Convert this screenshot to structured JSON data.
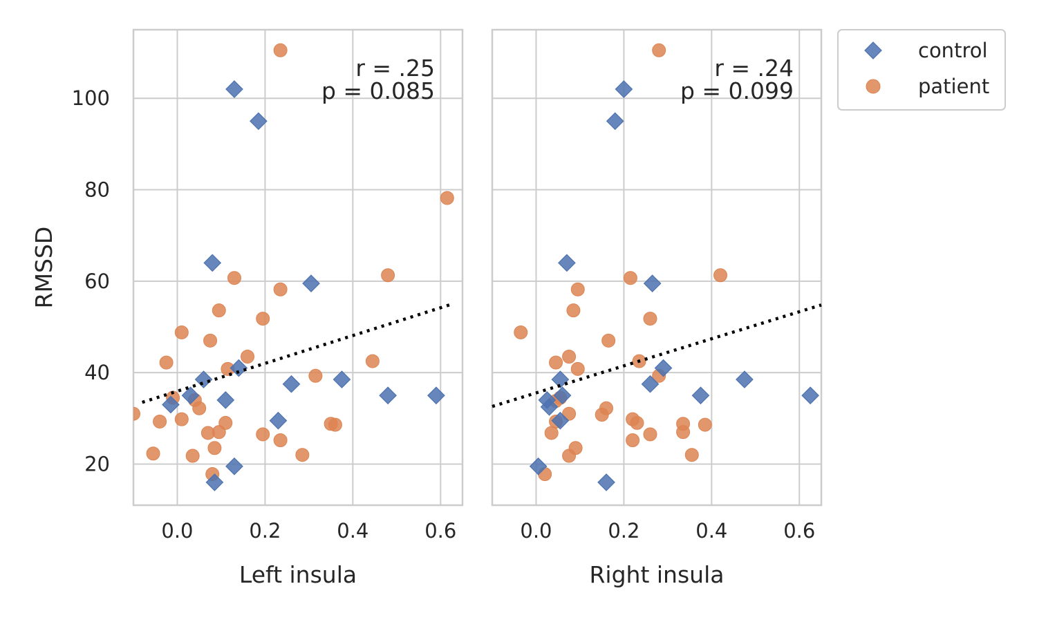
{
  "chart_data": [
    {
      "type": "scatter",
      "xlabel": "Left insula",
      "ylabel": "RMSSD",
      "xlim": [
        -0.1,
        0.65
      ],
      "ylim": [
        11,
        115
      ],
      "xticks": [
        0.0,
        0.2,
        0.4,
        0.6
      ],
      "xtick_labels": [
        "0.0",
        "0.2",
        "0.4",
        "0.6"
      ],
      "yticks": [
        20,
        40,
        60,
        80,
        100
      ],
      "ytick_labels": [
        "20",
        "40",
        "60",
        "80",
        "100"
      ],
      "grid": true,
      "annotation": {
        "r_label": "r = .25",
        "p_label": "p = 0.085"
      },
      "regression": {
        "style": "dotted",
        "x": [
          -0.08,
          0.62
        ],
        "y": [
          33.5,
          54.8
        ]
      },
      "series": [
        {
          "name": "control",
          "marker": "diamond",
          "color": "#4c72b0",
          "points": [
            [
              0.13,
              102
            ],
            [
              0.185,
              95
            ],
            [
              0.08,
              64
            ],
            [
              0.305,
              59.5
            ],
            [
              0.14,
              41
            ],
            [
              0.06,
              38.5
            ],
            [
              0.26,
              37.5
            ],
            [
              0.375,
              38.5
            ],
            [
              0.03,
              35
            ],
            [
              0.11,
              34
            ],
            [
              -0.015,
              33
            ],
            [
              0.48,
              35
            ],
            [
              0.59,
              35
            ],
            [
              0.23,
              29.5
            ],
            [
              0.13,
              19.5
            ],
            [
              0.085,
              16
            ]
          ]
        },
        {
          "name": "patient",
          "marker": "circle",
          "color": "#dd8452",
          "points": [
            [
              0.235,
              110.5
            ],
            [
              0.615,
              78.2
            ],
            [
              0.13,
              60.7
            ],
            [
              0.48,
              61.3
            ],
            [
              0.235,
              58.2
            ],
            [
              0.095,
              53.6
            ],
            [
              0.195,
              51.8
            ],
            [
              0.01,
              48.8
            ],
            [
              0.075,
              47
            ],
            [
              -0.025,
              42.2
            ],
            [
              0.445,
              42.5
            ],
            [
              0.16,
              43.5
            ],
            [
              0.115,
              40.8
            ],
            [
              0.315,
              39.3
            ],
            [
              -0.01,
              34.5
            ],
            [
              0.04,
              34
            ],
            [
              0.05,
              32.2
            ],
            [
              0.01,
              29.8
            ],
            [
              -0.04,
              29.3
            ],
            [
              0.11,
              29
            ],
            [
              0.35,
              28.8
            ],
            [
              0.36,
              28.6
            ],
            [
              0.07,
              26.8
            ],
            [
              0.095,
              27
            ],
            [
              0.195,
              26.5
            ],
            [
              0.235,
              25.2
            ],
            [
              -0.055,
              22.3
            ],
            [
              0.035,
              21.8
            ],
            [
              0.285,
              22
            ],
            [
              0.085,
              23.5
            ],
            [
              0.08,
              17.8
            ],
            [
              -0.1,
              31
            ]
          ]
        }
      ]
    },
    {
      "type": "scatter",
      "xlabel": "Right insula",
      "ylabel": "",
      "xlim": [
        -0.1,
        0.65
      ],
      "ylim": [
        11,
        115
      ],
      "xticks": [
        0.0,
        0.2,
        0.4,
        0.6
      ],
      "xtick_labels": [
        "0.0",
        "0.2",
        "0.4",
        "0.6"
      ],
      "yticks": [
        20,
        40,
        60,
        80,
        100
      ],
      "grid": true,
      "annotation": {
        "r_label": "r = .24",
        "p_label": "p = 0.099"
      },
      "regression": {
        "style": "dotted",
        "x": [
          -0.1,
          0.65
        ],
        "y": [
          32.6,
          54.8
        ]
      },
      "series": [
        {
          "name": "control",
          "marker": "diamond",
          "color": "#4c72b0",
          "points": [
            [
              0.2,
              102
            ],
            [
              0.18,
              95
            ],
            [
              0.07,
              64
            ],
            [
              0.265,
              59.5
            ],
            [
              0.29,
              41
            ],
            [
              0.055,
              38.5
            ],
            [
              0.26,
              37.5
            ],
            [
              0.475,
              38.5
            ],
            [
              0.025,
              34
            ],
            [
              0.03,
              32.5
            ],
            [
              0.06,
              35
            ],
            [
              0.375,
              35
            ],
            [
              0.625,
              35
            ],
            [
              0.055,
              29.5
            ],
            [
              0.005,
              19.5
            ],
            [
              0.16,
              16
            ]
          ]
        },
        {
          "name": "patient",
          "marker": "circle",
          "color": "#dd8452",
          "points": [
            [
              0.28,
              110.5
            ],
            [
              0.42,
              61.3
            ],
            [
              0.215,
              60.7
            ],
            [
              0.095,
              58.2
            ],
            [
              0.085,
              53.6
            ],
            [
              0.26,
              51.8
            ],
            [
              -0.035,
              48.8
            ],
            [
              0.165,
              47
            ],
            [
              0.075,
              43.5
            ],
            [
              0.045,
              42.2
            ],
            [
              0.235,
              42.5
            ],
            [
              0.095,
              40.8
            ],
            [
              0.28,
              39.3
            ],
            [
              0.055,
              34.5
            ],
            [
              0.045,
              33.8
            ],
            [
              0.16,
              32.2
            ],
            [
              0.075,
              31
            ],
            [
              0.15,
              30.8
            ],
            [
              0.045,
              29.3
            ],
            [
              0.22,
              29.8
            ],
            [
              0.23,
              29
            ],
            [
              0.335,
              28.8
            ],
            [
              0.385,
              28.6
            ],
            [
              0.035,
              26.8
            ],
            [
              0.335,
              27
            ],
            [
              0.26,
              26.5
            ],
            [
              0.22,
              25.2
            ],
            [
              0.355,
              22
            ],
            [
              0.075,
              21.8
            ],
            [
              0.09,
              23.5
            ],
            [
              0.02,
              17.8
            ]
          ]
        }
      ]
    }
  ],
  "legend": {
    "position": "outside-top-right",
    "items": [
      {
        "label": "control",
        "marker": "diamond",
        "color": "#4c72b0"
      },
      {
        "label": "patient",
        "marker": "circle",
        "color": "#dd8452"
      }
    ]
  }
}
